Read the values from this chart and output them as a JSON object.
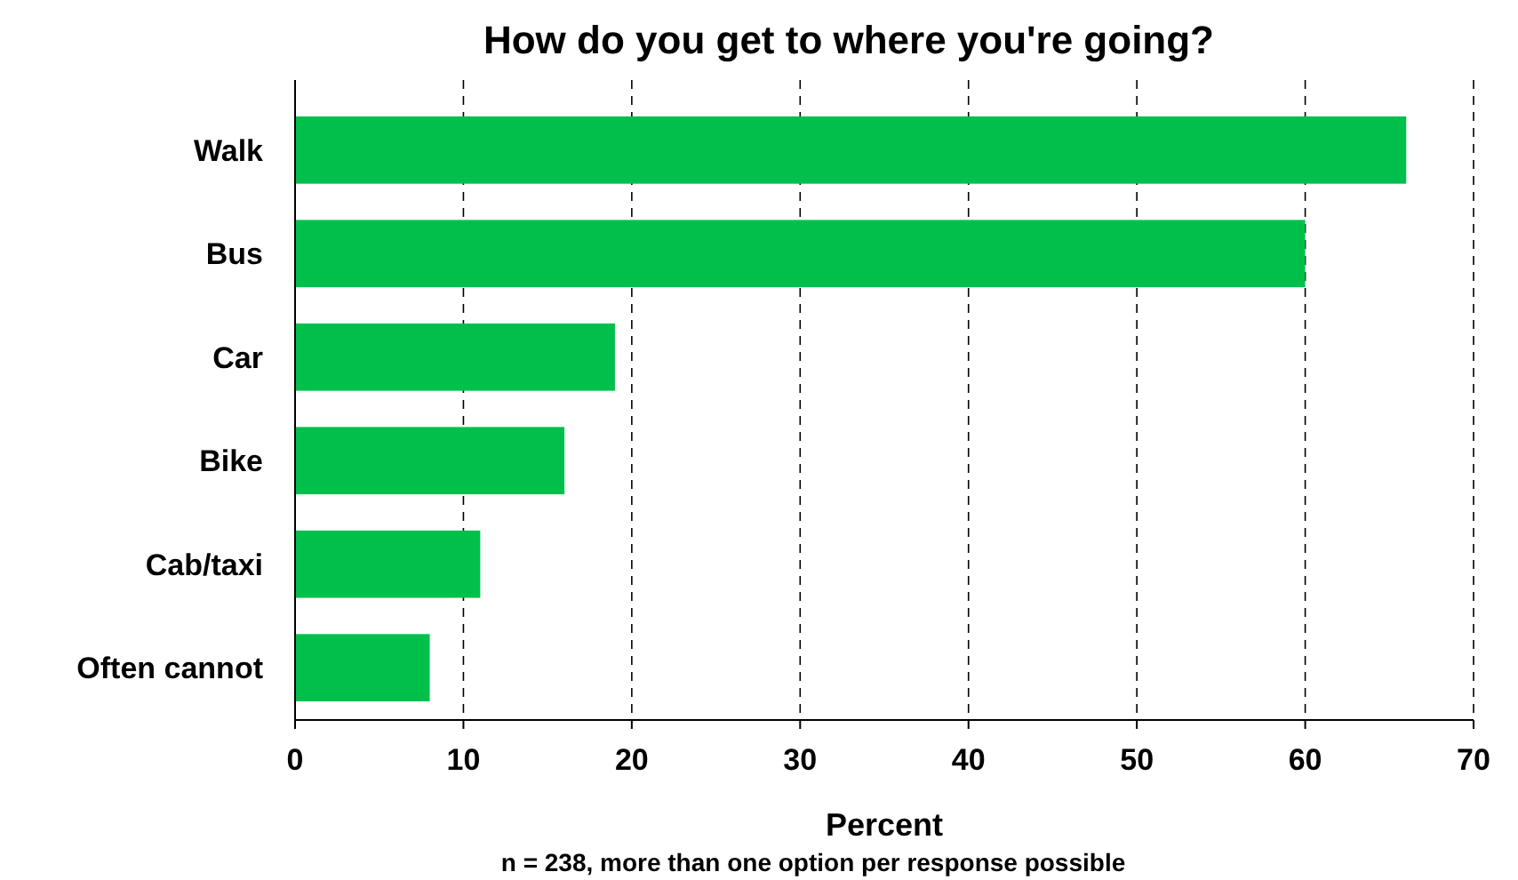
{
  "chart_data": {
    "type": "bar",
    "orientation": "horizontal",
    "title": "How do you get to where you're going?",
    "xlabel": "Percent",
    "categories": [
      "Walk",
      "Bus",
      "Car",
      "Bike",
      "Cab/taxi",
      "Often cannot"
    ],
    "values": [
      66,
      60,
      19,
      16,
      11,
      8
    ],
    "color": "#00c04b",
    "xlim": [
      0,
      70
    ],
    "xticks": [
      0,
      10,
      20,
      30,
      40,
      50,
      60,
      70
    ],
    "grid": "x",
    "annotations": [
      "n = 238, more than one option per response  possible"
    ]
  }
}
